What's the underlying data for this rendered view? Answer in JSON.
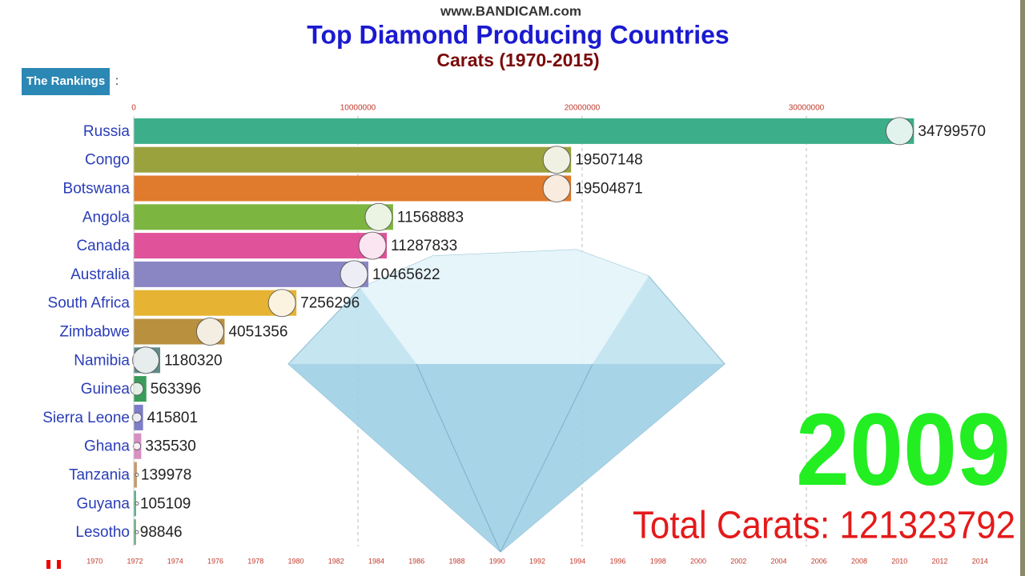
{
  "watermark": "www.BANDICAM.com",
  "button": {
    "label": "The Rankings",
    "suffix": ":"
  },
  "chart_data": {
    "type": "bar",
    "orientation": "horizontal",
    "title": "Top Diamond Producing Countries",
    "subtitle": "Carats (1970-2015)",
    "categories": [
      "Russia",
      "Congo",
      "Botswana",
      "Angola",
      "Canada",
      "Australia",
      "South Africa",
      "Zimbabwe",
      "Namibia",
      "Guinea",
      "Sierra Leone",
      "Ghana",
      "Tanzania",
      "Guyana",
      "Lesotho"
    ],
    "values": [
      34799570,
      19507148,
      19504871,
      11568883,
      11287833,
      10465622,
      7256296,
      4051356,
      1180320,
      563396,
      415801,
      335530,
      139978,
      105109,
      98846
    ],
    "colors": [
      "#3cae8a",
      "#9aa23e",
      "#e07a2c",
      "#7cb640",
      "#e0529a",
      "#8a86c4",
      "#e6b432",
      "#b8903e",
      "#5f8c8a",
      "#3a9c5a",
      "#7d7dc8",
      "#d88fc2",
      "#c49a6c",
      "#5cb08a",
      "#6aa97a"
    ],
    "xlim": [
      0,
      38000000
    ],
    "xticks": [
      0,
      10000000,
      20000000,
      30000000
    ],
    "grid": true,
    "year": "2009",
    "total": "Total Carats: 121323792",
    "timeline": {
      "xlim": [
        1968,
        2016
      ],
      "xticks": [
        1970,
        1972,
        1974,
        1976,
        1978,
        1980,
        1982,
        1984,
        1986,
        1988,
        1990,
        1992,
        1994,
        1996,
        1998,
        2000,
        2002,
        2004,
        2006,
        2008,
        2010,
        2012,
        2014
      ]
    }
  }
}
